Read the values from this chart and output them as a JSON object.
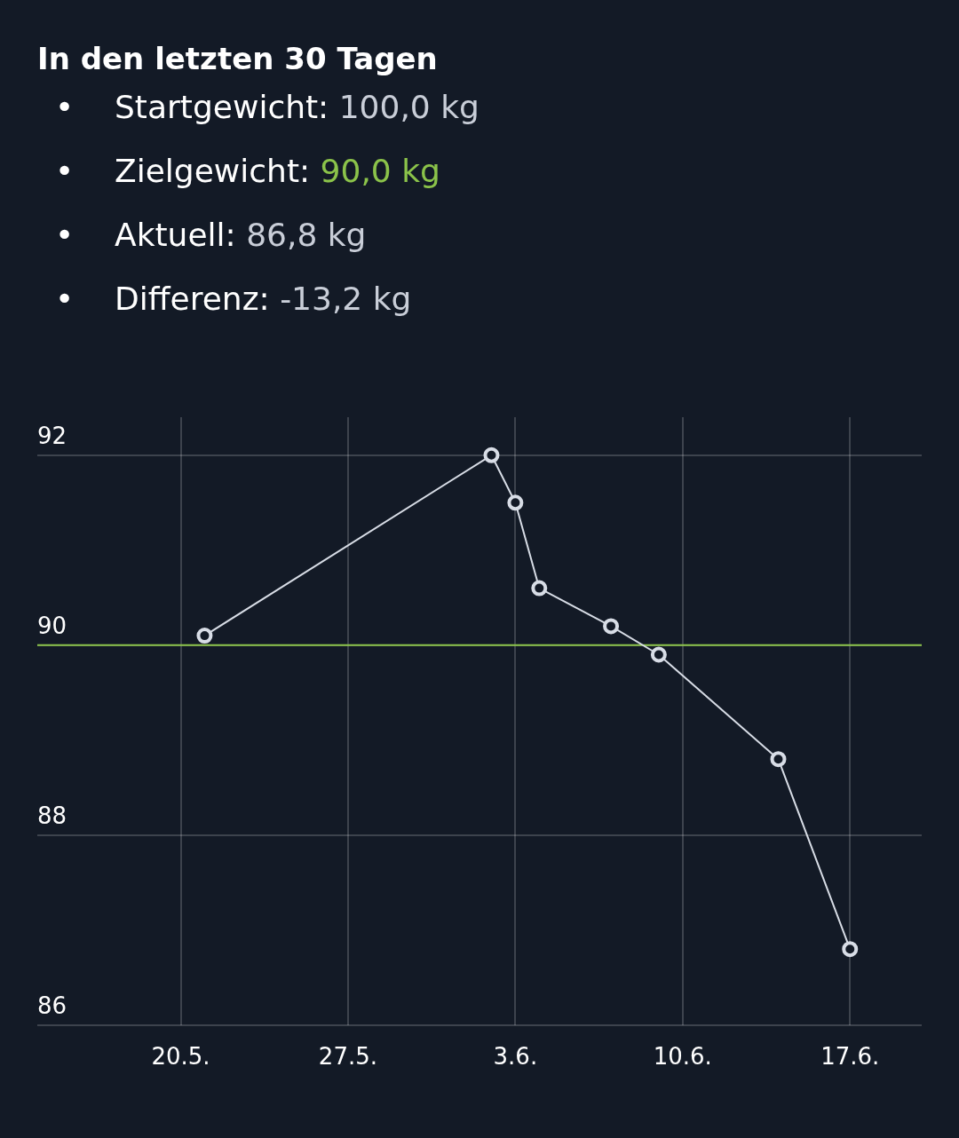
{
  "chart_data": {
    "type": "line",
    "title": "In den letzten 30 Tagen",
    "annotations": [
      "• Startgewicht: 100,0 kg",
      "• Zielgewicht: 90,0 kg",
      "• Aktuell: 86,8 kg",
      "• Differenz: -13,2 kg"
    ],
    "x": [
      "--05-21",
      "--06-02",
      "--06-03",
      "--06-04",
      "--06-07",
      "--06-09",
      "--06-14",
      "--06-17"
    ],
    "series": [
      {
        "color": "#d8dde6",
        "values": [
          90.1,
          92.0,
          91.5,
          90.6,
          90.2,
          89.9,
          88.8,
          86.8
        ]
      }
    ],
    "xlim": [
      "--05-14",
      "--06-20"
    ],
    "xticks": [
      {
        "value": "--05-20",
        "label": "20.5."
      },
      {
        "value": "--05-27",
        "label": "27.5."
      },
      {
        "value": "--06-03",
        "label": "3.6."
      },
      {
        "value": "--06-10",
        "label": "10.6."
      },
      {
        "value": "--06-17",
        "label": "17.6."
      }
    ],
    "ylim": [
      86,
      92.4
    ],
    "yticks": [
      86,
      88,
      90,
      92
    ],
    "ref_lines": [
      {
        "axis": "y",
        "value": 90,
        "color": "#8bc34a"
      }
    ],
    "grid": true,
    "legend": false,
    "marker": "circle",
    "line_style": "solid"
  }
}
